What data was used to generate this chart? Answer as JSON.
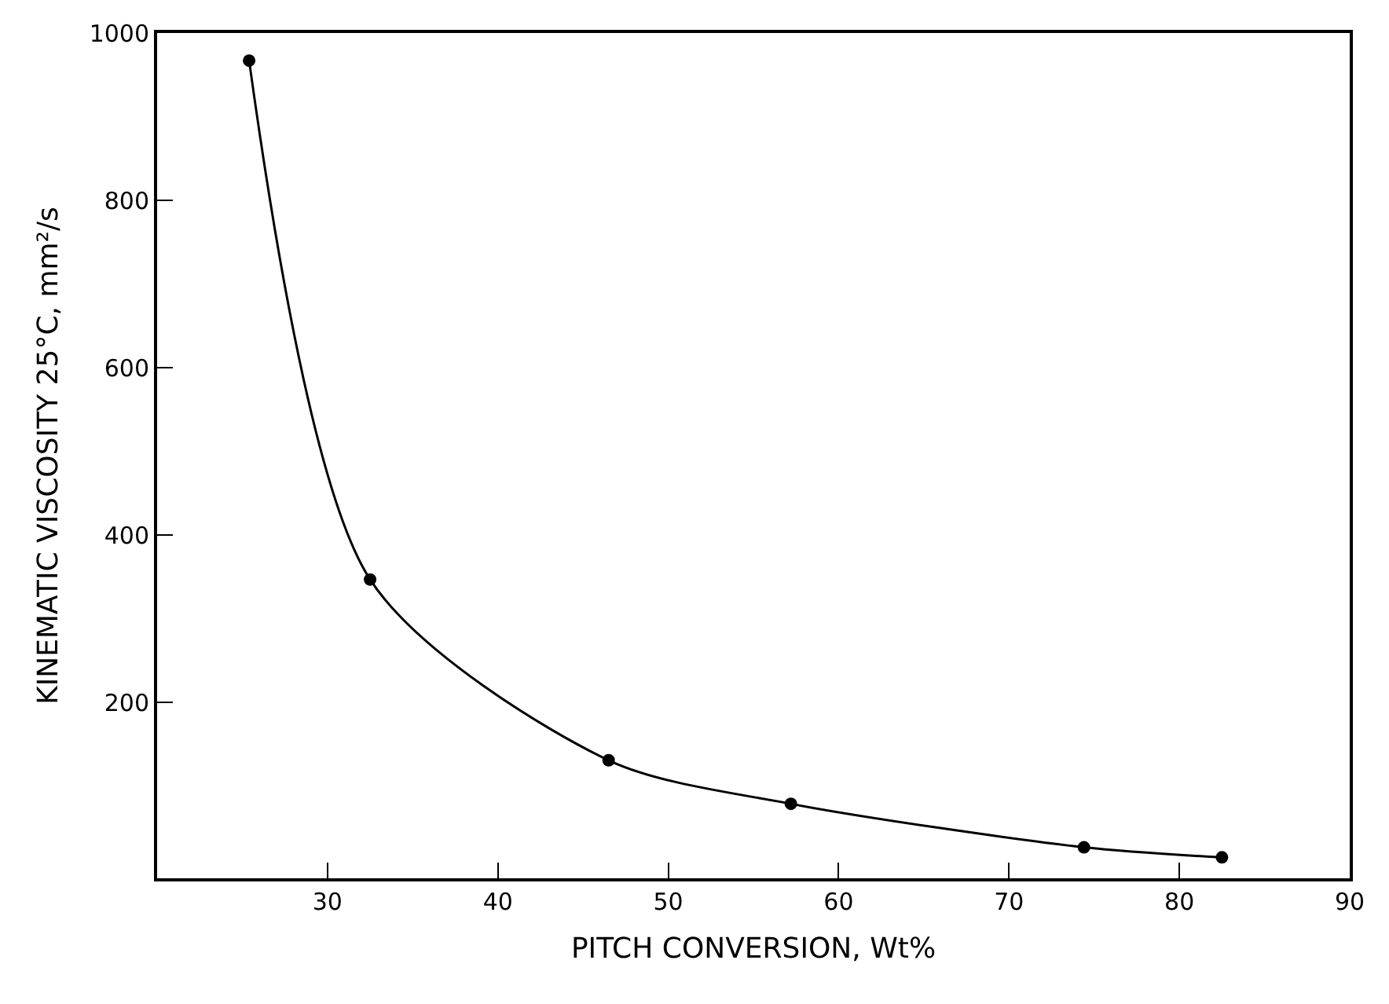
{
  "chart_data": {
    "type": "line",
    "xlabel": "PITCH CONVERSION, Wt%",
    "ylabel": "KINEMATIC VISCOSITY 25°C, mm²/s",
    "x": [
      25.4,
      32.5,
      46.5,
      57.2,
      74.4,
      82.5
    ],
    "series": [
      {
        "color": "#000000",
        "values": [
          967,
          347,
          131,
          79,
          27,
          15
        ]
      }
    ],
    "xlim": [
      20,
      90
    ],
    "xticks": [
      30,
      40,
      50,
      60,
      70,
      80,
      90
    ],
    "ylim": [
      -10,
      1000
    ],
    "yticks": [
      200,
      400,
      600,
      800,
      1000
    ],
    "marker": "circle",
    "line_style": "solid"
  }
}
